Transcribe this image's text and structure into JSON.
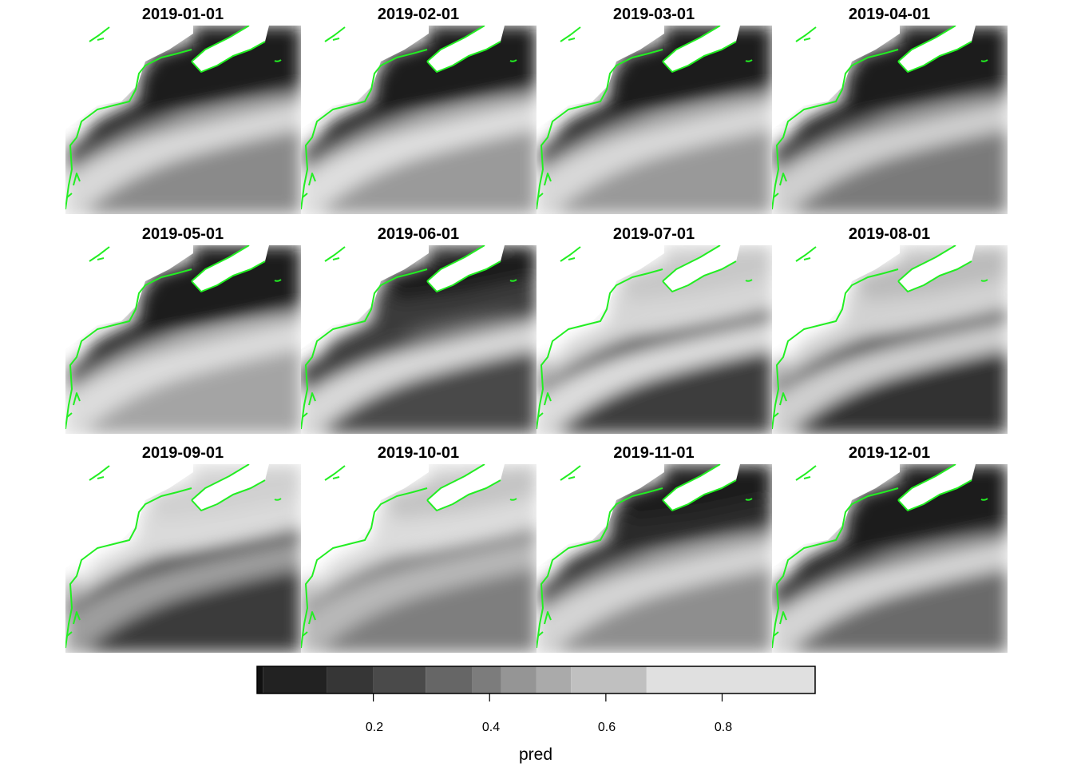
{
  "panels": [
    {
      "title": "2019-01-01"
    },
    {
      "title": "2019-02-01"
    },
    {
      "title": "2019-03-01"
    },
    {
      "title": "2019-04-01"
    },
    {
      "title": "2019-05-01"
    },
    {
      "title": "2019-06-01"
    },
    {
      "title": "2019-07-01"
    },
    {
      "title": "2019-08-01"
    },
    {
      "title": "2019-09-01"
    },
    {
      "title": "2019-10-01"
    },
    {
      "title": "2019-11-01"
    },
    {
      "title": "2019-12-01"
    }
  ],
  "coastline_color": "#22ee22",
  "legend": {
    "title": "pred",
    "range": [
      0.0,
      0.96
    ],
    "ticks": [
      "0.2",
      "0.4",
      "0.6",
      "0.8"
    ],
    "tick_values": [
      0.2,
      0.4,
      0.6,
      0.8
    ],
    "breaks": [
      0.0,
      0.01,
      0.12,
      0.2,
      0.29,
      0.37,
      0.42,
      0.48,
      0.54,
      0.67,
      0.96
    ],
    "colors": [
      "#111111",
      "#222222",
      "#363636",
      "#4a4a4a",
      "#666666",
      "#7c7c7c",
      "#959595",
      "#aaaaaa",
      "#c0c0c0",
      "#e0e0e0"
    ]
  }
}
